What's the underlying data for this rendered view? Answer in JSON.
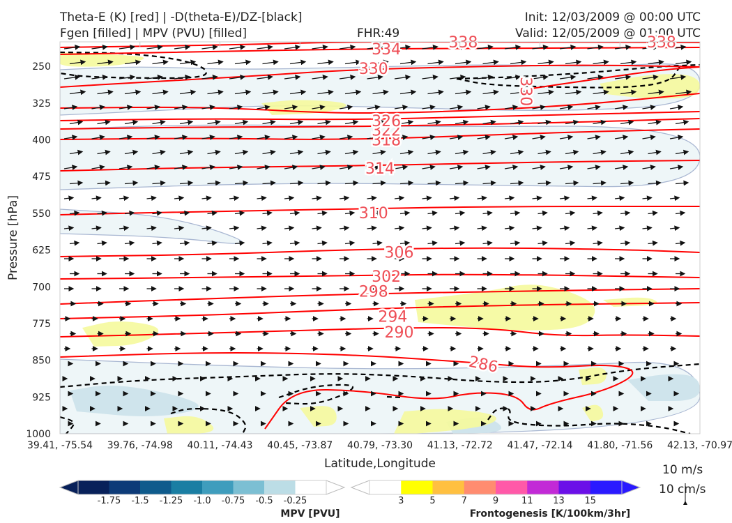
{
  "header": {
    "title_line1": "Theta-E (K) [red] | -D(theta-E)/DZ-[black]",
    "title_line2": "Fgen [filled] | MPV (PVU) [filled]",
    "fhr": "FHR:49",
    "init": "Init: 12/03/2009 @ 00:00 UTC",
    "valid": "Valid: 12/05/2009 @ 01:00 UTC"
  },
  "chart_data": {
    "type": "cross-section",
    "xlabel": "Latitude,Longitude",
    "ylabel": "Pressure [hPa]",
    "x_tick_labels": [
      "39.41, -75.54",
      "39.76, -74.98",
      "40.11, -74.43",
      "40.45, -73.87",
      "40.79, -73.30",
      "41.13, -72.72",
      "41.47, -72.14",
      "41.80, -71.56",
      "42.13, -70.97"
    ],
    "y_ticks": [
      250,
      325,
      400,
      475,
      550,
      625,
      700,
      775,
      850,
      925,
      1000
    ],
    "ylim": [
      1000,
      200
    ],
    "y_scale": "linear, inverted",
    "theta_e": {
      "color": "#ff0000",
      "labeled_contours": [
        {
          "value": 286,
          "label": "286",
          "x": 0.66,
          "p": 857
        },
        {
          "value": 290,
          "label": "290",
          "x": 0.53,
          "p": 792
        },
        {
          "value": 294,
          "label": "294",
          "x": 0.52,
          "p": 760
        },
        {
          "value": 298,
          "label": "298",
          "x": 0.49,
          "p": 709
        },
        {
          "value": 302,
          "label": "302",
          "x": 0.51,
          "p": 678
        },
        {
          "value": 306,
          "label": "306",
          "x": 0.53,
          "p": 629
        },
        {
          "value": 310,
          "label": "310",
          "x": 0.49,
          "p": 549
        },
        {
          "value": 314,
          "label": "314",
          "x": 0.5,
          "p": 458
        },
        {
          "value": 318,
          "label": "318",
          "x": 0.51,
          "p": 400
        },
        {
          "value": 322,
          "label": "322",
          "x": 0.51,
          "p": 380
        },
        {
          "value": 326,
          "label": "326",
          "x": 0.51,
          "p": 361
        },
        {
          "value": 330,
          "label": "330",
          "x": 0.49,
          "p": 254
        },
        {
          "value": 334,
          "label": "334",
          "x": 0.51,
          "p": 214
        },
        {
          "value": 338,
          "label": "338",
          "x": 0.63,
          "p": 200
        },
        {
          "value": 338,
          "label": "338",
          "x": 0.94,
          "p": 200
        },
        {
          "value": 330,
          "label": "330",
          "x": 0.72,
          "p": 290
        }
      ]
    },
    "wind_vectors": {
      "reference_1": "10 m/s",
      "reference_2": "10 cm/s"
    },
    "mpv_colorbar": {
      "title": "MPV [PVU]",
      "ticks": [
        "-1.75",
        "-1.5",
        "-1.25",
        "-1.0",
        "-0.75",
        "-0.5",
        "-0.25"
      ],
      "colors": [
        "#08215a",
        "#0d3b78",
        "#0f5b8c",
        "#1a7ea3",
        "#3f9dbd",
        "#7cbfd3",
        "#bcdde6",
        "#ffffff"
      ]
    },
    "fgen_colorbar": {
      "title": "Frontogenesis [K/100km/3hr]",
      "ticks": [
        "3",
        "5",
        "7",
        "9",
        "11",
        "13",
        "15"
      ],
      "colors": [
        "#ffffff",
        "#ffff00",
        "#ffc040",
        "#ff8c70",
        "#ff59a8",
        "#c22ad6",
        "#6b10e8",
        "#2a1aff"
      ]
    }
  }
}
